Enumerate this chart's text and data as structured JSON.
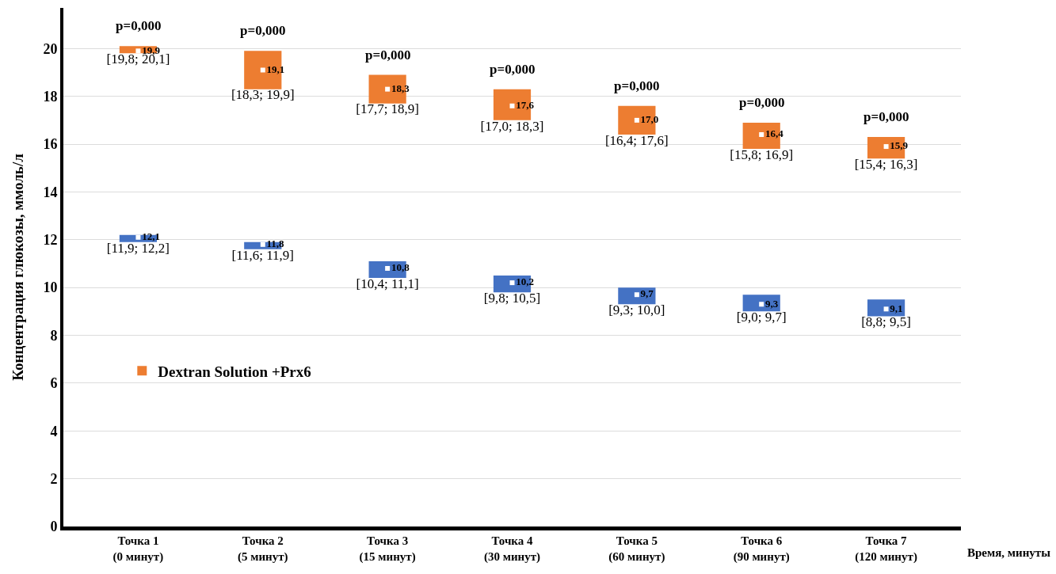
{
  "chart_data": {
    "type": "bar",
    "ylabel": "Концентрация глюкозы, ммоль/л",
    "xlabel": "Время, минуты",
    "categories": [
      "Точка 1\n(0 минут)",
      "Точка 2\n(5 минут)",
      "Точка 3\n(15 минут)",
      "Точка 4\n(30 минут)",
      "Точка 5\n(60 минут)",
      "Точка 6\n(90 минут)",
      "Точка 7\n(120 минут)"
    ],
    "series": [
      {
        "color": "#4472c4",
        "base": [
          11.9,
          11.6,
          10.4,
          9.8,
          9.3,
          9.0,
          8.8
        ],
        "values": [
          0.3,
          0.3,
          0.7,
          0.7,
          0.7,
          0.7,
          0.7
        ],
        "value_labels": [
          "[11,9; 12,2]",
          "[11,6; 11,9]",
          "[10,4; 11,1]",
          "[9,8; 10,5]",
          "[9,3; 10,0]",
          "[9,0; 9,7]",
          "[8,8; 9,5]"
        ]
      },
      {
        "name": "Dextran Solution +Prx6",
        "color": "#ed7d31",
        "base": [
          19.8,
          18.3,
          17.7,
          17.0,
          16.4,
          15.8,
          15.4
        ],
        "values": [
          0.3,
          1.6,
          1.2,
          1.3,
          1.2,
          1.1,
          0.9
        ],
        "value_labels": [
          "[19,8; 20,1]",
          "[18,3; 19,9]",
          "[17,7; 18,9]",
          "[17,0; 18,3]",
          "[16,4; 17,6]",
          "[15,8; 16,9]",
          "[15,4; 16,3]"
        ]
      },
      {
        "type": "scatter",
        "marker": "square",
        "color": "#ffffff",
        "values": [
          12.1,
          11.8,
          10.8,
          10.2,
          9.7,
          9.3,
          9.1
        ],
        "value_labels": [
          "12,1",
          "11,8",
          "10,8",
          "10,2",
          "9,7",
          "9,3",
          "9,1"
        ]
      },
      {
        "type": "scatter",
        "marker": "square",
        "color": "#ffffff",
        "values": [
          19.9,
          19.1,
          18.3,
          17.6,
          17.0,
          16.4,
          15.9
        ],
        "value_labels": [
          "19,9",
          "19,1",
          "18,3",
          "17,6",
          "17,0",
          "16,4",
          "15,9"
        ]
      }
    ],
    "annotations": [
      "p=0,000",
      "p=0,000",
      "p=0,000",
      "p=0,000",
      "p=0,000",
      "p=0,000",
      "p=0,000"
    ],
    "ylim": [
      0,
      21.7
    ],
    "yticks": [
      0,
      2,
      4,
      6,
      8,
      10,
      12,
      14,
      16,
      18,
      20
    ],
    "grid": "y",
    "legend": "left"
  }
}
